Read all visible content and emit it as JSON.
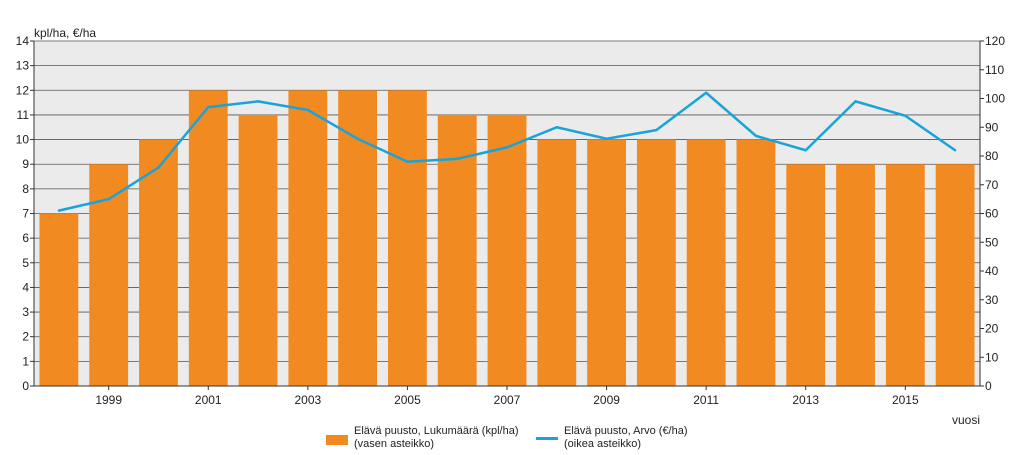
{
  "chart_data": {
    "type": "bar",
    "y_left_label": "kpl/ha, €/ha",
    "xlabel": "vuosi",
    "x_tick_labels": [
      "1999",
      "2001",
      "2003",
      "2005",
      "2007",
      "2009",
      "2011",
      "2013",
      "2015"
    ],
    "categories": [
      1998,
      1999,
      2000,
      2001,
      2002,
      2003,
      2004,
      2005,
      2006,
      2007,
      2008,
      2009,
      2010,
      2011,
      2012,
      2013,
      2014,
      2015,
      2016
    ],
    "ylim_left": [
      0,
      14
    ],
    "ylim_right": [
      0,
      120
    ],
    "y_left_ticks": [
      0,
      1,
      2,
      3,
      4,
      5,
      6,
      7,
      8,
      9,
      10,
      11,
      12,
      13,
      14
    ],
    "y_right_ticks": [
      0,
      10,
      20,
      30,
      40,
      50,
      60,
      70,
      80,
      90,
      100,
      110,
      120
    ],
    "grid": true,
    "legend_position": "bottom",
    "series": [
      {
        "name": "Elävä puusto, Lukumäärä (kpl/ha)",
        "name_line2": "(vasen asteikko)",
        "type": "bar",
        "axis": "left",
        "color": "#f28a22",
        "values": [
          7,
          9,
          10,
          12,
          11,
          12,
          12,
          12,
          11,
          11,
          10,
          10,
          10,
          10,
          10,
          9,
          9,
          9,
          9
        ]
      },
      {
        "name": "Elävä puusto, Arvo (€/ha)",
        "name_line2": "(oikea asteikko)",
        "type": "line",
        "axis": "right",
        "color": "#1aa3d9",
        "values": [
          61,
          65,
          76,
          97,
          99,
          96,
          86,
          78,
          79,
          83,
          90,
          86,
          89,
          102,
          87,
          82,
          99,
          94,
          82
        ]
      }
    ]
  }
}
